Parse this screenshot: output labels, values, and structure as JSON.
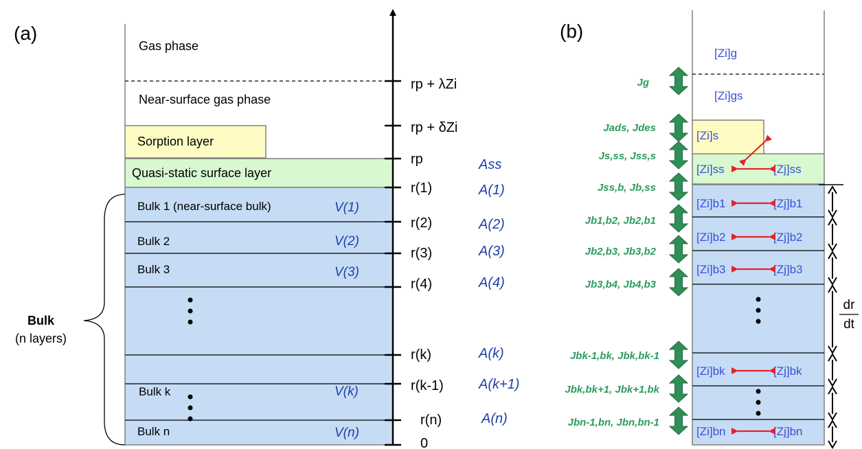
{
  "panel_labels": {
    "a": "(a)",
    "b": "(b)"
  },
  "layers_a": {
    "gas": "Gas phase",
    "near_surface_gas": "Near-surface gas phase",
    "sorption": "Sorption layer",
    "quasi_static": "Quasi-static surface layer",
    "bulk1": "Bulk 1 (near-surface bulk)",
    "bulk2": "Bulk 2",
    "bulk3": "Bulk 3",
    "bulkk": "Bulk k",
    "bulkn": "Bulk n"
  },
  "volumes": [
    "V(1)",
    "V(2)",
    "V(3)",
    "V(k)",
    "V(n)"
  ],
  "axis_labels": [
    "rp + λZi",
    "rp + δZi",
    "rp",
    "r(1)",
    "r(2)",
    "r(3)",
    "r(4)",
    "r(k)",
    "r(k-1)",
    "r(n)",
    "0"
  ],
  "areas": [
    "Ass",
    "A(1)",
    "A(2)",
    "A(3)",
    "A(4)",
    "A(k)",
    "A(k+1)",
    "A(n)"
  ],
  "bulk_label": {
    "title": "Bulk",
    "subtitle": "(n layers)"
  },
  "fluxes": [
    "Jg",
    "Jads, Jdes",
    "Js,ss, Jss,s",
    "Jss,b, Jb,ss",
    "Jb1,b2, Jb2,b1",
    "Jb2,b3, Jb3,b2",
    "Jb3,b4, Jb4,b3",
    "Jbk-1,bk, Jbk,bk-1",
    "Jbk,bk+1, Jbk+1,bk",
    "Jbn-1,bn, Jbn,bn-1"
  ],
  "concentrations": [
    "[Zi]g",
    "[Zi]gs",
    "[Zi]s",
    "[Zi]ss",
    "[Zj]ss",
    "[Zi]b1",
    "[Zj]b1",
    "[Zi]b2",
    "[Zj]b2",
    "[Zi]b3",
    "[Zj]b3",
    "[Zi]bk",
    "[Zj]bk",
    "[Zi]bn",
    "[Zj]bn"
  ],
  "rate_label": {
    "num": "dr",
    "den": "dt"
  },
  "colors": {
    "bulk_fill": "#c6dcf4",
    "quasi_fill": "#d8f8d0",
    "sorption_fill": "#fefcc4",
    "flux_green": "#2e9b5e",
    "arrow_fill": "#2f8f56",
    "area_blue": "#1f3fa8",
    "conc_blue": "#3a4fd8",
    "exchange_red": "#e8202a"
  }
}
